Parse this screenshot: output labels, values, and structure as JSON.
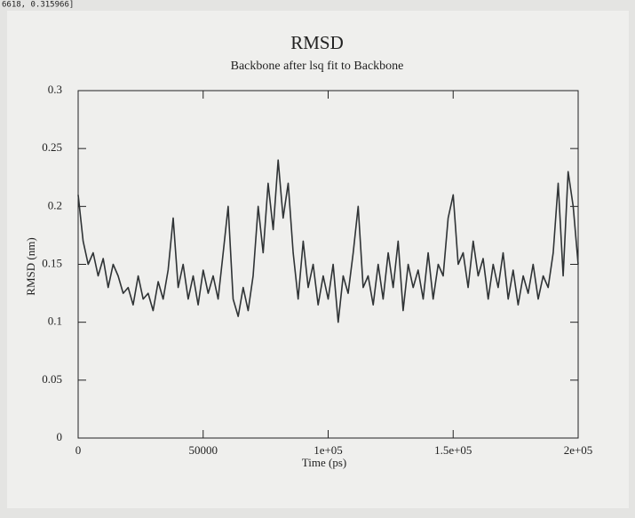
{
  "status": "6618, 0.315966]",
  "chart_data": {
    "type": "line",
    "title": "RMSD",
    "subtitle": "Backbone after lsq fit to Backbone",
    "x_label": "Time (ps)",
    "y_label": "RMSD (nm)",
    "xlim": [
      0,
      200000
    ],
    "ylim": [
      0,
      0.3
    ],
    "xticks": [
      0,
      50000,
      {
        "value": 100000,
        "label": "1e+05"
      },
      {
        "value": 150000,
        "label": "1.5e+05"
      },
      {
        "value": 200000,
        "label": "2e+05"
      }
    ],
    "yticks": [
      0,
      0.05,
      0.1,
      0.15,
      0.2,
      0.25,
      0.3
    ],
    "x": [
      0,
      2000,
      4000,
      6000,
      8000,
      10000,
      12000,
      14000,
      16000,
      18000,
      20000,
      22000,
      24000,
      26000,
      28000,
      30000,
      32000,
      34000,
      36000,
      38000,
      40000,
      42000,
      44000,
      46000,
      48000,
      50000,
      52000,
      54000,
      56000,
      58000,
      60000,
      62000,
      64000,
      66000,
      68000,
      70000,
      72000,
      74000,
      76000,
      78000,
      80000,
      82000,
      84000,
      86000,
      88000,
      90000,
      92000,
      94000,
      96000,
      98000,
      100000,
      102000,
      104000,
      106000,
      108000,
      110000,
      112000,
      114000,
      116000,
      118000,
      120000,
      122000,
      124000,
      126000,
      128000,
      130000,
      132000,
      134000,
      136000,
      138000,
      140000,
      142000,
      144000,
      146000,
      148000,
      150000,
      152000,
      154000,
      156000,
      158000,
      160000,
      162000,
      164000,
      166000,
      168000,
      170000,
      172000,
      174000,
      176000,
      178000,
      180000,
      182000,
      184000,
      186000,
      188000,
      190000,
      192000,
      194000,
      196000,
      198000,
      200000
    ],
    "series": [
      {
        "color": "#2f3335",
        "values": [
          0.21,
          0.17,
          0.15,
          0.16,
          0.14,
          0.155,
          0.13,
          0.15,
          0.14,
          0.125,
          0.13,
          0.115,
          0.14,
          0.12,
          0.125,
          0.11,
          0.135,
          0.12,
          0.145,
          0.19,
          0.13,
          0.15,
          0.12,
          0.14,
          0.115,
          0.145,
          0.125,
          0.14,
          0.12,
          0.16,
          0.2,
          0.12,
          0.105,
          0.13,
          0.11,
          0.14,
          0.2,
          0.16,
          0.22,
          0.18,
          0.24,
          0.19,
          0.22,
          0.16,
          0.12,
          0.17,
          0.13,
          0.15,
          0.115,
          0.14,
          0.12,
          0.15,
          0.1,
          0.14,
          0.125,
          0.16,
          0.2,
          0.13,
          0.14,
          0.115,
          0.15,
          0.12,
          0.16,
          0.13,
          0.17,
          0.11,
          0.15,
          0.13,
          0.145,
          0.12,
          0.16,
          0.12,
          0.15,
          0.14,
          0.19,
          0.21,
          0.15,
          0.16,
          0.13,
          0.17,
          0.14,
          0.155,
          0.12,
          0.15,
          0.13,
          0.16,
          0.12,
          0.145,
          0.115,
          0.14,
          0.125,
          0.15,
          0.12,
          0.14,
          0.13,
          0.16,
          0.22,
          0.14,
          0.23,
          0.2,
          0.15
        ]
      }
    ]
  }
}
